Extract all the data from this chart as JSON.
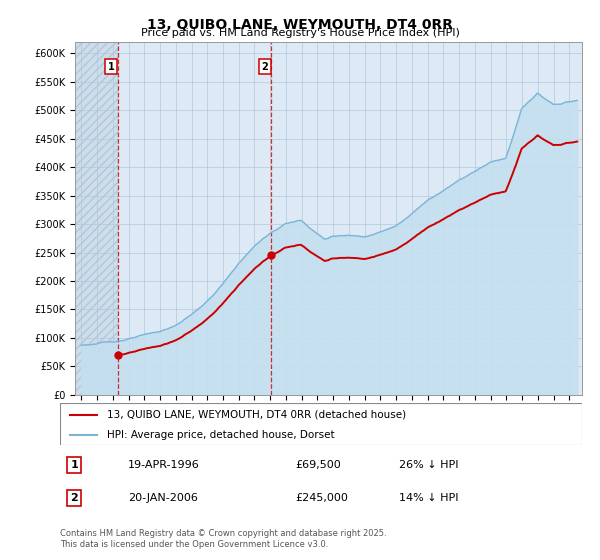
{
  "title": "13, QUIBO LANE, WEYMOUTH, DT4 0RR",
  "subtitle": "Price paid vs. HM Land Registry's House Price Index (HPI)",
  "legend_line1": "13, QUIBO LANE, WEYMOUTH, DT4 0RR (detached house)",
  "legend_line2": "HPI: Average price, detached house, Dorset",
  "sale1_label": "1",
  "sale1_date_str": "19-APR-1996",
  "sale1_price": 69500,
  "sale1_hpi_diff": "26% ↓ HPI",
  "sale1_year": 1996.3,
  "sale2_label": "2",
  "sale2_date_str": "20-JAN-2006",
  "sale2_price": 245000,
  "sale2_hpi_diff": "14% ↓ HPI",
  "sale2_year": 2006.05,
  "ylim": [
    0,
    620000
  ],
  "xlim_start": 1993.6,
  "xlim_end": 2025.8,
  "yticks": [
    0,
    50000,
    100000,
    150000,
    200000,
    250000,
    300000,
    350000,
    400000,
    450000,
    500000,
    550000,
    600000
  ],
  "ytick_labels": [
    "£0",
    "£50K",
    "£100K",
    "£150K",
    "£200K",
    "£250K",
    "£300K",
    "£350K",
    "£400K",
    "£450K",
    "£500K",
    "£550K",
    "£600K"
  ],
  "hpi_color": "#7ab4d8",
  "hpi_fill_color": "#c5dff0",
  "price_color": "#cc0000",
  "plot_bg_color": "#ddeaf5",
  "hatch_color": "#c0d4e8",
  "grid_color": "#b0c8dc",
  "copyright_text": "Contains HM Land Registry data © Crown copyright and database right 2025.\nThis data is licensed under the Open Government Licence v3.0."
}
